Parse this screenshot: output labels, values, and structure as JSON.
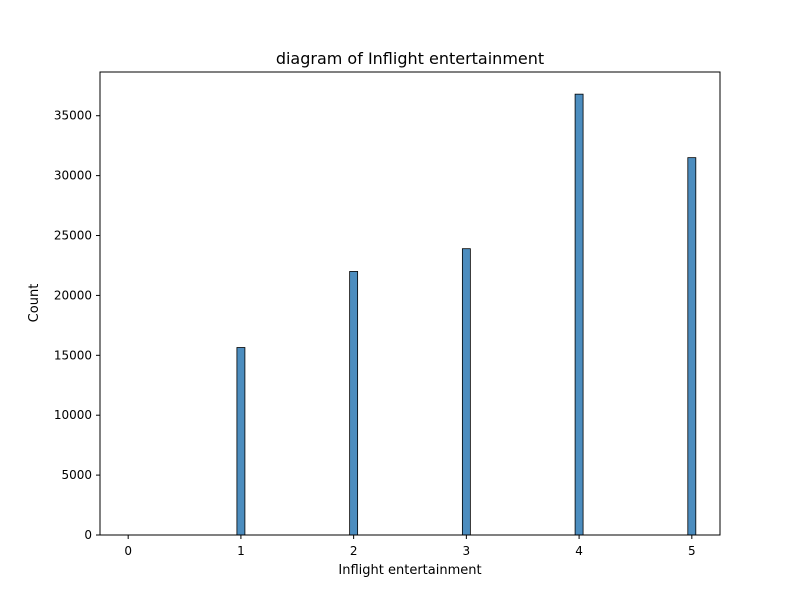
{
  "chart_data": {
    "type": "bar",
    "title": "diagram of Inflight entertainment",
    "xlabel": "Inflight entertainment",
    "ylabel": "Count",
    "categories": [
      0,
      1,
      2,
      3,
      4,
      5
    ],
    "values": [
      0,
      15650,
      22000,
      23900,
      36800,
      31500
    ],
    "xlim": [
      -0.25,
      5.25
    ],
    "ylim": [
      0,
      38650
    ],
    "x_ticks": [
      "0",
      "1",
      "2",
      "3",
      "4",
      "5"
    ],
    "y_ticks": [
      "0",
      "5000",
      "10000",
      "15000",
      "20000",
      "25000",
      "30000",
      "35000"
    ],
    "bar_color": "#4c8dbf",
    "grid": false,
    "legend": false
  }
}
